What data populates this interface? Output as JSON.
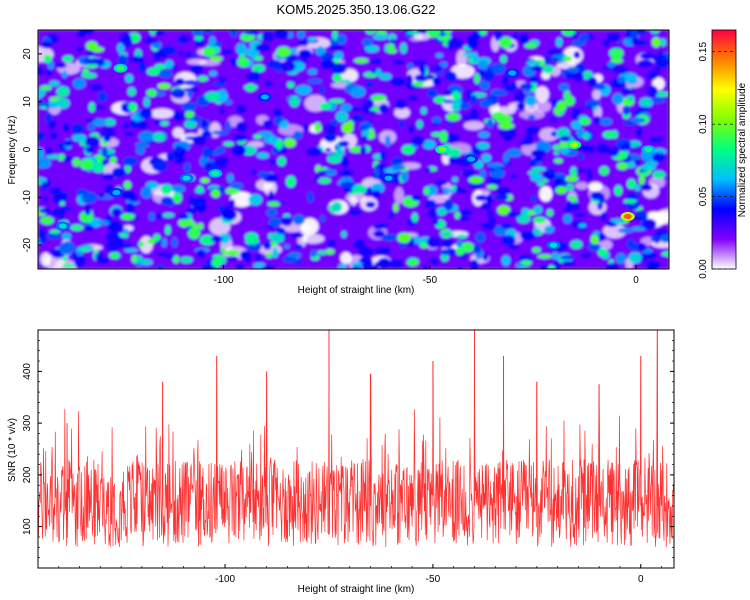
{
  "title": "KOM5.2025.350.13.06.G22",
  "chart_data": [
    {
      "type": "heatmap",
      "xlabel": "Height of straight line (km)",
      "ylabel": "Frequency (Hz)",
      "xlim": [
        -145,
        8
      ],
      "ylim": [
        -25,
        25
      ],
      "xticks": [
        -100,
        -50,
        0
      ],
      "yticks": [
        -20,
        -10,
        0,
        10,
        20
      ],
      "colorbar": {
        "label": "Normalized spectral amplitude",
        "range": [
          0,
          0.165
        ],
        "ticks": [
          "0.00",
          "0.05",
          "0.10",
          "0.15"
        ],
        "colors": [
          "#ffffff",
          "#8000ff",
          "#0000ff",
          "#00bfff",
          "#00ff80",
          "#80ff00",
          "#ffff00",
          "#ff8000",
          "#ff0040"
        ]
      },
      "hotspots": [
        {
          "x": -139,
          "y": -16,
          "value": 0.07
        },
        {
          "x": -126,
          "y": -9,
          "value": 0.06
        },
        {
          "x": -125,
          "y": 17,
          "value": 0.09
        },
        {
          "x": -109,
          "y": -6,
          "value": 0.07
        },
        {
          "x": -102,
          "y": -5,
          "value": 0.08
        },
        {
          "x": -90,
          "y": 11,
          "value": 0.06
        },
        {
          "x": -60,
          "y": -6,
          "value": 0.06
        },
        {
          "x": -47,
          "y": 0,
          "value": 0.1
        },
        {
          "x": -40,
          "y": -2,
          "value": 0.06
        },
        {
          "x": -30,
          "y": 16,
          "value": 0.06
        },
        {
          "x": -20,
          "y": -20,
          "value": 0.07
        },
        {
          "x": -15,
          "y": 1,
          "value": 0.11
        },
        {
          "x": -2,
          "y": -14,
          "value": 0.15
        },
        {
          "x": 3,
          "y": 0,
          "value": 0.08
        }
      ]
    },
    {
      "type": "line",
      "xlabel": "Height of straight line (km)",
      "ylabel": "SNR (10 * v/v)",
      "xlim": [
        -145,
        8
      ],
      "ylim": [
        20,
        480
      ],
      "xticks": [
        -100,
        -50,
        0
      ],
      "yticks": [
        100,
        200,
        300,
        400
      ],
      "color": "#ff3030",
      "peaks": [
        {
          "x": -138,
          "y": 300
        },
        {
          "x": -115,
          "y": 380
        },
        {
          "x": -102,
          "y": 430
        },
        {
          "x": -90,
          "y": 400
        },
        {
          "x": -75,
          "y": 480
        },
        {
          "x": -65,
          "y": 395
        },
        {
          "x": -50,
          "y": 420
        },
        {
          "x": -40,
          "y": 480
        },
        {
          "x": -33,
          "y": 430
        },
        {
          "x": -25,
          "y": 380
        },
        {
          "x": -10,
          "y": 375
        },
        {
          "x": 0,
          "y": 430
        },
        {
          "x": 4,
          "y": 480
        }
      ]
    }
  ]
}
